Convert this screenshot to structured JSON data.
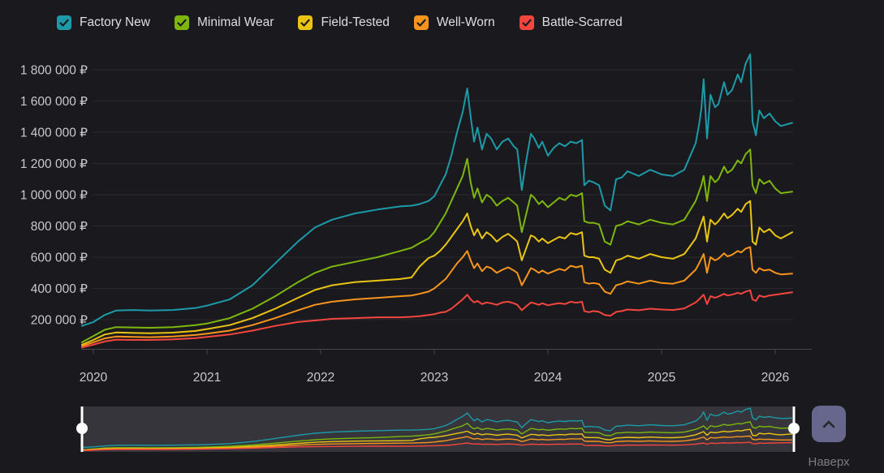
{
  "page": {
    "background": "#1a1a1e"
  },
  "legend": {
    "items": [
      {
        "label": "Factory New",
        "color": "#1d9aa8",
        "checked": true
      },
      {
        "label": "Minimal Wear",
        "color": "#7db70d",
        "checked": true
      },
      {
        "label": "Field-Tested",
        "color": "#eac413",
        "checked": true
      },
      {
        "label": "Well-Worn",
        "color": "#f7941d",
        "checked": true
      },
      {
        "label": "Battle-Scarred",
        "color": "#f4453e",
        "checked": true
      }
    ],
    "checkmark_color": "#1b1b1f"
  },
  "scroll_top": {
    "label": "Наверх",
    "button_color": "#67678e",
    "icon": "chevron-up",
    "icon_color": "#26262a"
  },
  "chart_data": {
    "type": "line",
    "title": "",
    "xlabel": "",
    "ylabel": "",
    "currency": "₽",
    "grid": true,
    "legend_position": "top",
    "xlim": [
      2019.9,
      2026.15
    ],
    "ylim": [
      0,
      1950000
    ],
    "x_tick_labels": [
      "2020",
      "2021",
      "2022",
      "2023",
      "2024",
      "2025",
      "2026"
    ],
    "y_tick_values": [
      200000,
      400000,
      600000,
      800000,
      1000000,
      1200000,
      1400000,
      1600000,
      1800000
    ],
    "y_tick_labels": [
      "200 000 ₽",
      "400 000 ₽",
      "600 000 ₽",
      "800 000 ₽",
      "1 000 000 ₽",
      "1 200 000 ₽",
      "1 400 000 ₽",
      "1 600 000 ₽",
      "1 800 000 ₽"
    ],
    "style": {
      "grid_color": "#28282d",
      "axis_color": "#47474c",
      "tick_color": "#c9c9cc",
      "navigator_bg": "#35353b",
      "handle_color": "#ffffff"
    },
    "navigator": {
      "present": true,
      "range": "full"
    },
    "x": [
      2019.9,
      2020.0,
      2020.1,
      2020.2,
      2020.35,
      2020.5,
      2020.7,
      2020.9,
      2021.0,
      2021.2,
      2021.4,
      2021.6,
      2021.8,
      2021.95,
      2022.1,
      2022.3,
      2022.5,
      2022.7,
      2022.8,
      2022.87,
      2022.95,
      2023.0,
      2023.05,
      2023.1,
      2023.15,
      2023.2,
      2023.25,
      2023.29,
      2023.32,
      2023.35,
      2023.38,
      2023.42,
      2023.46,
      2023.5,
      2023.55,
      2023.6,
      2023.65,
      2023.7,
      2023.73,
      2023.77,
      2023.8,
      2023.85,
      2023.88,
      2023.92,
      2023.95,
      2024.0,
      2024.05,
      2024.1,
      2024.15,
      2024.2,
      2024.25,
      2024.3,
      2024.32,
      2024.36,
      2024.4,
      2024.45,
      2024.5,
      2024.55,
      2024.6,
      2024.65,
      2024.7,
      2024.8,
      2024.9,
      2025.0,
      2025.1,
      2025.2,
      2025.3,
      2025.33,
      2025.35,
      2025.37,
      2025.4,
      2025.43,
      2025.47,
      2025.5,
      2025.55,
      2025.58,
      2025.62,
      2025.67,
      2025.7,
      2025.74,
      2025.78,
      2025.8,
      2025.83,
      2025.86,
      2025.9,
      2025.95,
      2026.0,
      2026.05,
      2026.15
    ],
    "series": [
      {
        "name": "Factory New",
        "color": "#1d9aa8",
        "values": [
          160000,
          185000,
          230000,
          258000,
          262000,
          258000,
          262000,
          275000,
          290000,
          330000,
          420000,
          560000,
          700000,
          790000,
          840000,
          880000,
          905000,
          925000,
          930000,
          940000,
          960000,
          990000,
          1060000,
          1130000,
          1250000,
          1400000,
          1530000,
          1680000,
          1500000,
          1340000,
          1430000,
          1290000,
          1390000,
          1360000,
          1290000,
          1340000,
          1360000,
          1310000,
          1290000,
          1030000,
          1180000,
          1390000,
          1360000,
          1300000,
          1340000,
          1250000,
          1300000,
          1330000,
          1310000,
          1340000,
          1330000,
          1350000,
          1060000,
          1090000,
          1080000,
          1060000,
          930000,
          900000,
          1100000,
          1110000,
          1150000,
          1120000,
          1160000,
          1130000,
          1120000,
          1160000,
          1330000,
          1450000,
          1550000,
          1740000,
          1360000,
          1640000,
          1560000,
          1580000,
          1720000,
          1640000,
          1670000,
          1770000,
          1720000,
          1840000,
          1900000,
          1470000,
          1380000,
          1540000,
          1490000,
          1520000,
          1470000,
          1440000,
          1460000
        ]
      },
      {
        "name": "Minimal Wear",
        "color": "#7db70d",
        "values": [
          55000,
          95000,
          135000,
          152000,
          150000,
          148000,
          152000,
          165000,
          175000,
          210000,
          270000,
          350000,
          440000,
          500000,
          540000,
          570000,
          600000,
          640000,
          660000,
          690000,
          720000,
          760000,
          820000,
          880000,
          960000,
          1040000,
          1120000,
          1230000,
          1080000,
          980000,
          1040000,
          950000,
          1000000,
          980000,
          930000,
          960000,
          980000,
          950000,
          930000,
          760000,
          850000,
          1000000,
          980000,
          940000,
          960000,
          920000,
          950000,
          980000,
          965000,
          1000000,
          990000,
          1010000,
          830000,
          820000,
          820000,
          810000,
          700000,
          680000,
          800000,
          810000,
          830000,
          810000,
          840000,
          820000,
          810000,
          840000,
          960000,
          1020000,
          1060000,
          1120000,
          960000,
          1120000,
          1080000,
          1100000,
          1180000,
          1140000,
          1160000,
          1220000,
          1200000,
          1260000,
          1290000,
          1060000,
          1010000,
          1100000,
          1070000,
          1090000,
          1040000,
          1010000,
          1020000
        ]
      },
      {
        "name": "Field-Tested",
        "color": "#eac413",
        "values": [
          40000,
          70000,
          105000,
          118000,
          115000,
          113000,
          117000,
          128000,
          140000,
          165000,
          210000,
          270000,
          340000,
          390000,
          420000,
          440000,
          450000,
          460000,
          470000,
          540000,
          595000,
          610000,
          640000,
          680000,
          730000,
          780000,
          830000,
          880000,
          800000,
          740000,
          780000,
          720000,
          760000,
          740000,
          700000,
          730000,
          750000,
          720000,
          700000,
          580000,
          640000,
          740000,
          730000,
          700000,
          720000,
          690000,
          710000,
          730000,
          720000,
          755000,
          745000,
          760000,
          610000,
          600000,
          600000,
          590000,
          520000,
          500000,
          580000,
          590000,
          610000,
          590000,
          620000,
          600000,
          590000,
          620000,
          720000,
          780000,
          820000,
          860000,
          700000,
          840000,
          810000,
          830000,
          880000,
          850000,
          870000,
          910000,
          890000,
          940000,
          960000,
          700000,
          680000,
          790000,
          760000,
          780000,
          740000,
          720000,
          760000
        ]
      },
      {
        "name": "Well-Worn",
        "color": "#f7941d",
        "values": [
          30000,
          55000,
          80000,
          92000,
          90000,
          88000,
          92000,
          102000,
          110000,
          130000,
          165000,
          210000,
          260000,
          295000,
          315000,
          330000,
          340000,
          350000,
          355000,
          365000,
          380000,
          400000,
          430000,
          460000,
          510000,
          560000,
          600000,
          640000,
          580000,
          530000,
          560000,
          510000,
          540000,
          530000,
          500000,
          520000,
          535000,
          515000,
          500000,
          420000,
          460000,
          530000,
          520000,
          500000,
          515000,
          495000,
          510000,
          525000,
          515000,
          545000,
          535000,
          545000,
          440000,
          430000,
          435000,
          428000,
          380000,
          365000,
          420000,
          430000,
          445000,
          430000,
          450000,
          435000,
          430000,
          450000,
          520000,
          560000,
          590000,
          620000,
          500000,
          600000,
          580000,
          590000,
          625000,
          605000,
          615000,
          640000,
          630000,
          655000,
          665000,
          520000,
          500000,
          530000,
          515000,
          520000,
          500000,
          490000,
          495000
        ]
      },
      {
        "name": "Battle-Scarred",
        "color": "#f4453e",
        "values": [
          22000,
          40000,
          60000,
          72000,
          70000,
          70000,
          74000,
          82000,
          90000,
          105000,
          130000,
          160000,
          185000,
          195000,
          205000,
          210000,
          215000,
          215000,
          218000,
          222000,
          230000,
          235000,
          245000,
          250000,
          270000,
          300000,
          330000,
          360000,
          330000,
          310000,
          320000,
          300000,
          310000,
          305000,
          295000,
          310000,
          315000,
          305000,
          295000,
          260000,
          280000,
          310000,
          305000,
          295000,
          305000,
          292000,
          300000,
          305000,
          300000,
          315000,
          308000,
          315000,
          255000,
          248000,
          255000,
          250000,
          230000,
          225000,
          250000,
          255000,
          265000,
          260000,
          270000,
          265000,
          262000,
          272000,
          310000,
          330000,
          345000,
          360000,
          300000,
          350000,
          340000,
          348000,
          365000,
          355000,
          360000,
          372000,
          365000,
          380000,
          388000,
          330000,
          320000,
          355000,
          345000,
          355000,
          360000,
          365000,
          375000
        ]
      }
    ]
  }
}
